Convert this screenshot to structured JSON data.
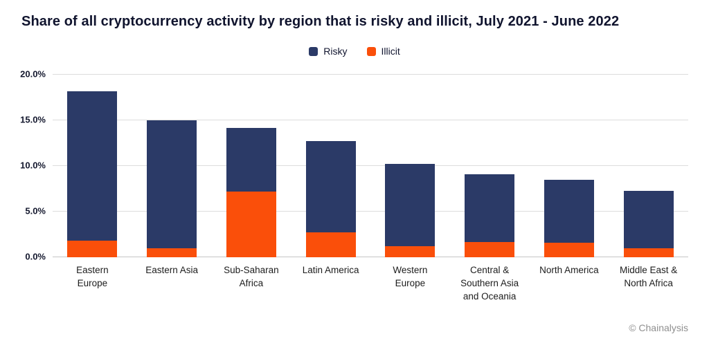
{
  "footer": {
    "credit": "© Chainalysis"
  },
  "colors": {
    "risky": "#2b3a67",
    "illicit": "#fa4f0a",
    "background": "#ffffff",
    "title_text": "#10142e",
    "axis_text": "#14182e",
    "gridline": "#dcdcdc"
  },
  "chart_data": {
    "type": "bar",
    "stacked": true,
    "title": "Share of all cryptocurrency activity by region that is risky and illicit, July 2021 - June 2022",
    "xlabel": "",
    "ylabel": "",
    "ylim": [
      0,
      20
    ],
    "yticks": [
      "0.0%",
      "5.0%",
      "10.0%",
      "15.0%",
      "20.0%"
    ],
    "ytick_values": [
      0,
      5,
      10,
      15,
      20
    ],
    "grid": "horizontal",
    "legend_position": "top-center",
    "legend": [
      {
        "label": "Risky",
        "color": "#2b3a67"
      },
      {
        "label": "Illicit",
        "color": "#fa4f0a"
      }
    ],
    "categories": [
      "Eastern Europe",
      "Eastern Asia",
      "Sub-Saharan Africa",
      "Latin America",
      "Western Europe",
      "Central & Southern Asia and Oceania",
      "North America",
      "Middle East & North Africa"
    ],
    "category_label_lines": [
      [
        "Eastern",
        "Europe"
      ],
      [
        "Eastern Asia"
      ],
      [
        "Sub-Saharan",
        "Africa"
      ],
      [
        "Latin America"
      ],
      [
        "Western",
        "Europe"
      ],
      [
        "Central &",
        "Southern Asia",
        "and Oceania"
      ],
      [
        "North America"
      ],
      [
        "Middle East &",
        "North Africa"
      ]
    ],
    "series": [
      {
        "name": "Illicit",
        "color": "#fa4f0a",
        "values": [
          1.8,
          1.0,
          7.2,
          2.7,
          1.2,
          1.7,
          1.6,
          1.0
        ]
      },
      {
        "name": "Risky",
        "color": "#2b3a67",
        "values": [
          16.4,
          14.0,
          7.0,
          10.0,
          9.0,
          7.4,
          6.9,
          6.3
        ]
      }
    ],
    "stack_totals": [
      18.2,
      15.0,
      14.2,
      12.7,
      10.2,
      9.1,
      8.5,
      7.3
    ]
  }
}
